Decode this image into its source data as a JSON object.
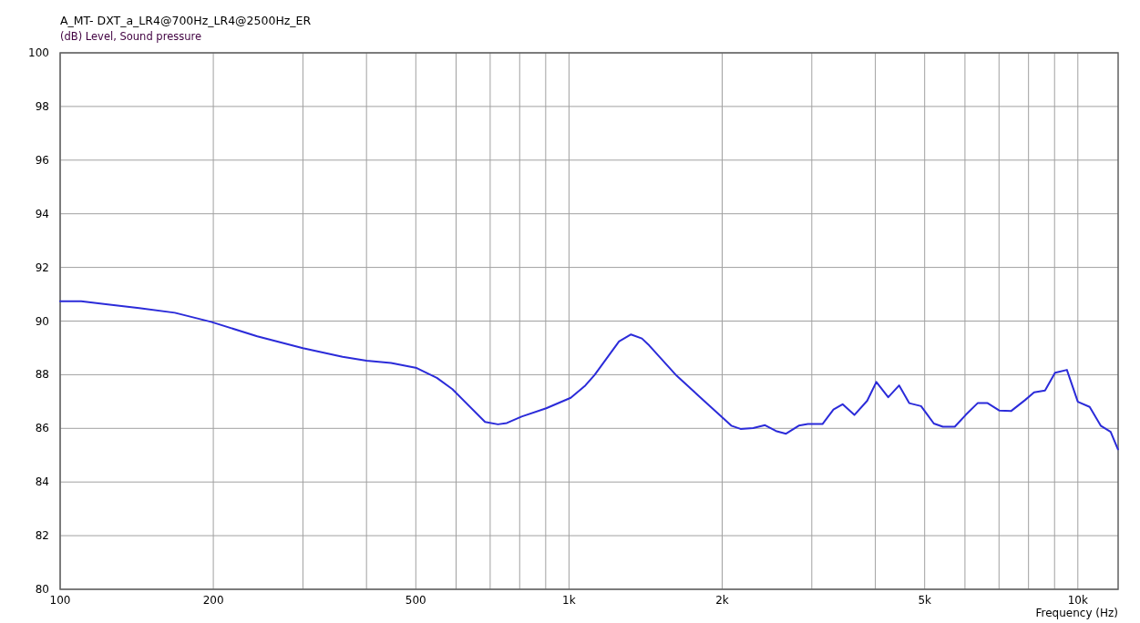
{
  "chart_data": {
    "type": "line",
    "title": "A_MT- DXT_a_LR4@700Hz_LR4@2500Hz_ER",
    "ylabel": "(dB)  Level, Sound pressure",
    "xlabel": "Frequency  (Hz)",
    "log": "x",
    "grid": true,
    "marker": "none",
    "line_style": "solid",
    "x": [
      100,
      110,
      123,
      143,
      168,
      198,
      244,
      300,
      359,
      400,
      447,
      502,
      550,
      590,
      684,
      725,
      755,
      807,
      902,
      1008,
      1077,
      1123,
      1254,
      1324,
      1391,
      1438,
      1628,
      1842,
      2001,
      2084,
      2173,
      2301,
      2428,
      2551,
      2670,
      2829,
      2948,
      3149,
      3309,
      3449,
      3638,
      3855,
      4018,
      4240,
      4455,
      4662,
      4919,
      5212,
      5430,
      5730,
      6020,
      6354,
      6648,
      7017,
      7400,
      7870,
      8204,
      8620,
      9020,
      9517,
      10000,
      10550,
      11090,
      11600,
      11990
    ],
    "series": [
      {
        "color": "#2b2bd9",
        "values": [
          90.74,
          90.74,
          90.63,
          90.48,
          90.31,
          89.97,
          89.43,
          88.99,
          88.67,
          88.52,
          88.44,
          88.25,
          87.88,
          87.46,
          86.24,
          86.15,
          86.2,
          86.44,
          86.75,
          87.14,
          87.6,
          87.99,
          89.24,
          89.5,
          89.35,
          89.09,
          87.96,
          87.03,
          86.41,
          86.1,
          85.98,
          86.01,
          86.12,
          85.9,
          85.8,
          86.1,
          86.16,
          86.16,
          86.7,
          86.9,
          86.5,
          87.03,
          87.73,
          87.16,
          87.6,
          86.94,
          86.83,
          86.18,
          86.06,
          86.06,
          86.5,
          86.94,
          86.94,
          86.66,
          86.65,
          87.05,
          87.34,
          87.41,
          88.07,
          88.18,
          86.99,
          86.8,
          86.1,
          85.87,
          85.22
        ]
      }
    ],
    "xlim": [
      100,
      12000
    ],
    "ylim": [
      80,
      100
    ],
    "xticks": [
      100,
      200,
      {
        "value": 300,
        "label": null
      },
      {
        "value": 400,
        "label": null
      },
      {
        "value": 500,
        "label": "500"
      },
      {
        "value": 600,
        "label": null
      },
      {
        "value": 700,
        "label": null
      },
      {
        "value": 800,
        "label": null
      },
      {
        "value": 900,
        "label": null
      },
      {
        "value": 1000,
        "label": "1k"
      },
      {
        "value": 2000,
        "label": "2k"
      },
      {
        "value": 3000,
        "label": null
      },
      {
        "value": 4000,
        "label": null
      },
      {
        "value": 5000,
        "label": "5k"
      },
      {
        "value": 6000,
        "label": null
      },
      {
        "value": 7000,
        "label": null
      },
      {
        "value": 8000,
        "label": null
      },
      {
        "value": 9000,
        "label": null
      },
      {
        "value": 10000,
        "label": "10k"
      }
    ],
    "yticks": [
      80,
      82,
      84,
      86,
      88,
      90,
      92,
      94,
      96,
      98,
      100
    ]
  }
}
